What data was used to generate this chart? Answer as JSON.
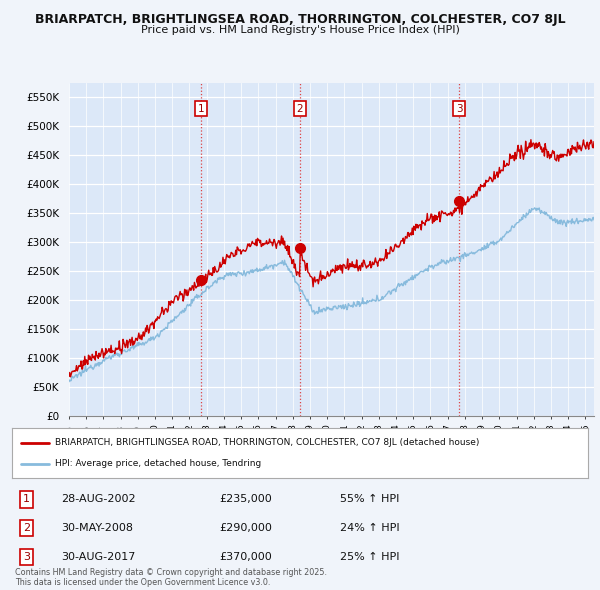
{
  "title_line1": "BRIARPATCH, BRIGHTLINGSEA ROAD, THORRINGTON, COLCHESTER, CO7 8JL",
  "title_line2": "Price paid vs. HM Land Registry's House Price Index (HPI)",
  "xlim_start": 1995.0,
  "xlim_end": 2025.5,
  "ylim": [
    0,
    575000
  ],
  "yticks": [
    0,
    50000,
    100000,
    150000,
    200000,
    250000,
    300000,
    350000,
    400000,
    450000,
    500000,
    550000
  ],
  "ytick_labels": [
    "£0",
    "£50K",
    "£100K",
    "£150K",
    "£200K",
    "£250K",
    "£300K",
    "£350K",
    "£400K",
    "£450K",
    "£500K",
    "£550K"
  ],
  "sale_dates": [
    2002.66,
    2008.41,
    2017.66
  ],
  "sale_prices": [
    235000,
    290000,
    370000
  ],
  "sale_labels": [
    "1",
    "2",
    "3"
  ],
  "vline_color": "#dd4444",
  "vline_style": ":",
  "sale_marker_color": "#cc0000",
  "hpi_line_color": "#88bbdd",
  "price_line_color": "#cc0000",
  "legend_red_label": "BRIARPATCH, BRIGHTLINGSEA ROAD, THORRINGTON, COLCHESTER, CO7 8JL (detached house)",
  "legend_blue_label": "HPI: Average price, detached house, Tendring",
  "table_rows": [
    {
      "num": "1",
      "date": "28-AUG-2002",
      "price": "£235,000",
      "change": "55% ↑ HPI"
    },
    {
      "num": "2",
      "date": "30-MAY-2008",
      "price": "£290,000",
      "change": "24% ↑ HPI"
    },
    {
      "num": "3",
      "date": "30-AUG-2017",
      "price": "£370,000",
      "change": "25% ↑ HPI"
    }
  ],
  "footer_text": "Contains HM Land Registry data © Crown copyright and database right 2025.\nThis data is licensed under the Open Government Licence v3.0.",
  "bg_color": "#f0f4fa",
  "plot_bg_color": "#dce8f8"
}
